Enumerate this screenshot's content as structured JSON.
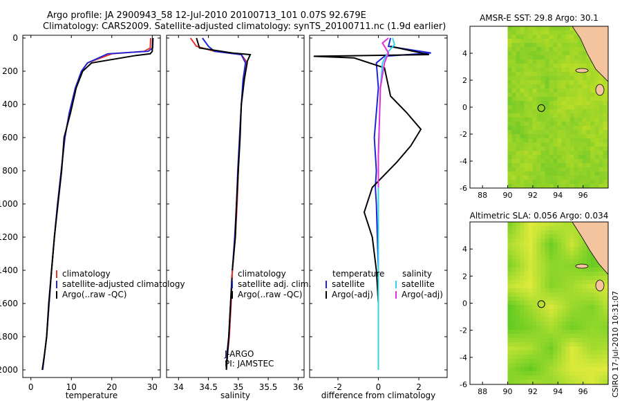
{
  "title": {
    "line1": "Argo profile: JA 2900943_58 12-Jul-2010 20100713_101 0.07S 92.679E",
    "line2": "Climatology: CARS2009. Satellite-adjusted climatology: synTS_20100711.nc (1.9d earlier)"
  },
  "footer_stamp": "CSIRO 17-Jul-2010 10:31:07",
  "colors": {
    "climatology": "#e8322c",
    "satellite": "#1f24d6",
    "argo": "#000000",
    "salinity_satellite": "#2fd6e8",
    "salinity_argo": "#e52ee0",
    "land": "#f4c49e"
  },
  "chart_data": [
    {
      "type": "line",
      "panel": "temperature",
      "xlabel": "temperature",
      "ylabel": "",
      "xlim": [
        -2,
        32
      ],
      "ylim": [
        2050,
        0
      ],
      "y_reversed": true,
      "xticks": [
        "0",
        "10",
        "20",
        "30"
      ],
      "yticks": [
        "0",
        "200",
        "400",
        "600",
        "800",
        "1000",
        "1200",
        "1400",
        "1600",
        "1800",
        "2000"
      ],
      "legend": [
        "climatology",
        "satellite-adjusted climatology",
        "Argo(..raw -QC)"
      ],
      "series": [
        {
          "name": "climatology",
          "x": [
            29.6,
            29.5,
            28,
            20,
            14,
            12.5,
            11,
            9.5,
            8.4,
            7.5,
            6.6,
            5.8,
            5.1,
            4.5,
            3.9,
            3.4,
            2.9
          ],
          "y": [
            0,
            60,
            80,
            95,
            150,
            200,
            300,
            450,
            600,
            800,
            1000,
            1200,
            1400,
            1600,
            1800,
            1900,
            2000
          ]
        },
        {
          "name": "satellite-adjusted climatology",
          "x": [
            30.2,
            30.1,
            29,
            19,
            14,
            12.5,
            11,
            9.5,
            8.4,
            7.5,
            6.6,
            5.8,
            5.1,
            4.5,
            3.9,
            3.4,
            2.9
          ],
          "y": [
            0,
            60,
            80,
            95,
            150,
            200,
            300,
            450,
            600,
            800,
            1000,
            1200,
            1400,
            1600,
            1800,
            1900,
            2000
          ]
        },
        {
          "name": "Argo(..raw -QC)",
          "x": [
            30.1,
            30,
            29.5,
            26,
            15,
            12.8,
            11.2,
            9.8,
            8.2,
            7.6,
            6.7,
            5.8,
            5.1,
            4.4,
            3.9,
            3.4,
            2.8
          ],
          "y": [
            0,
            80,
            95,
            105,
            150,
            200,
            300,
            450,
            600,
            800,
            1000,
            1200,
            1400,
            1600,
            1800,
            1900,
            2000
          ]
        }
      ]
    },
    {
      "type": "line",
      "panel": "salinity",
      "xlabel": "salinity",
      "ylabel": "",
      "xlim": [
        33.8,
        36.1
      ],
      "ylim": [
        2050,
        0
      ],
      "y_reversed": true,
      "xticks": [
        "34",
        "34.5",
        "35",
        "35.5",
        "36"
      ],
      "legend": [
        "climatology",
        "satellite adj. clim.",
        "Argo(..raw -QC)"
      ],
      "annotation": [
        "J-ARGO",
        "PI: JAMSTEC"
      ],
      "series": [
        {
          "name": "climatology",
          "x": [
            34.2,
            34.3,
            34.6,
            35.05,
            35.15,
            35.1,
            35.05,
            35.02,
            35.0,
            34.98,
            34.95,
            34.9,
            34.88,
            34.85,
            34.82,
            34.8
          ],
          "y": [
            0,
            50,
            80,
            100,
            150,
            250,
            400,
            600,
            800,
            1000,
            1200,
            1400,
            1600,
            1800,
            1900,
            2000
          ]
        },
        {
          "name": "satellite adj. clim.",
          "x": [
            34.4,
            34.5,
            34.6,
            35.05,
            35.12,
            35.08,
            35.05,
            35.02,
            34.99,
            34.97,
            34.94,
            34.9,
            34.87,
            34.84,
            34.81,
            34.8
          ],
          "y": [
            0,
            50,
            80,
            100,
            150,
            250,
            400,
            600,
            800,
            1000,
            1200,
            1400,
            1600,
            1800,
            1900,
            2000
          ]
        },
        {
          "name": "Argo(..raw -QC)",
          "x": [
            34.3,
            34.35,
            34.9,
            35.2,
            35.15,
            35.1,
            35.05,
            35.03,
            35.0,
            34.97,
            34.95,
            34.9,
            34.87,
            34.84,
            34.82,
            34.8
          ],
          "y": [
            0,
            60,
            90,
            100,
            140,
            250,
            400,
            600,
            800,
            1000,
            1200,
            1400,
            1600,
            1800,
            1900,
            2000
          ]
        }
      ]
    },
    {
      "type": "line",
      "panel": "difference",
      "xlabel": "difference from climatology",
      "ylabel": "",
      "xlim": [
        -3.4,
        3.4
      ],
      "ylim": [
        2050,
        0
      ],
      "y_reversed": true,
      "xticks": [
        "-2",
        "0",
        "2"
      ],
      "legend_header": [
        "temperature",
        "salinity"
      ],
      "legend": [
        "satellite",
        "Argo(-adj)",
        "satellite",
        "Argo(-adj)"
      ],
      "series": [
        {
          "name": "temperature satellite",
          "x": [
            0.6,
            0.5,
            2.6,
            0.3,
            -0.1,
            0.0,
            -0.2,
            -0.1,
            -0.15,
            -0.1,
            -0.05,
            0.0,
            0.0,
            0.0,
            0.0,
            0.0
          ],
          "y": [
            0,
            50,
            90,
            110,
            150,
            300,
            600,
            800,
            900,
            1000,
            1200,
            1400,
            1600,
            1800,
            1900,
            2000
          ]
        },
        {
          "name": "temperature Argo(-adj)",
          "x": [
            0.6,
            2.5,
            -3.2,
            -1.2,
            0.3,
            0.6,
            1.4,
            2.1,
            1.6,
            0.9,
            -0.3,
            -0.7,
            -0.3,
            -0.1,
            0.0,
            0.0
          ],
          "y": [
            50,
            100,
            110,
            120,
            180,
            350,
            450,
            550,
            650,
            750,
            900,
            1050,
            1200,
            1400,
            1600,
            1700
          ]
        },
        {
          "name": "salinity satellite",
          "x": [
            0.7,
            0.8,
            0.5,
            0.2,
            0.1,
            0.05,
            0.0,
            0.0,
            0.0,
            0.0,
            0.0,
            0.0,
            0.0
          ],
          "y": [
            0,
            40,
            80,
            150,
            300,
            500,
            700,
            1000,
            1200,
            1400,
            1600,
            1800,
            2000
          ]
        },
        {
          "name": "salinity Argo(-adj)",
          "x": [
            0.5,
            0.2,
            0.5,
            0.3,
            0.1,
            0.05,
            0.0,
            0.0,
            0.0
          ],
          "y": [
            0,
            30,
            90,
            150,
            300,
            500,
            700,
            800,
            900
          ]
        }
      ]
    },
    {
      "type": "heatmap",
      "panel": "AMSR-E SST",
      "title": "AMSR-E SST: 29.8 Argo: 30.1",
      "xticks": [
        "88",
        "90",
        "92",
        "94",
        "96"
      ],
      "yticks": [
        "4",
        "2",
        "0",
        "-2",
        "-4",
        "-6"
      ],
      "xlim": [
        87,
        98
      ],
      "ylim": [
        -6,
        6
      ],
      "marker": {
        "lon": 92.68,
        "lat": -0.07
      }
    },
    {
      "type": "heatmap",
      "panel": "Altimetric SLA",
      "title": "Altimetric SLA: 0.056 Argo: 0.034",
      "xticks": [
        "88",
        "90",
        "92",
        "94",
        "96"
      ],
      "yticks": [
        "4",
        "2",
        "0",
        "-2",
        "-4",
        "-6"
      ],
      "xlim": [
        87,
        98
      ],
      "ylim": [
        -6,
        6
      ],
      "marker": {
        "lon": 92.68,
        "lat": -0.07
      }
    }
  ]
}
